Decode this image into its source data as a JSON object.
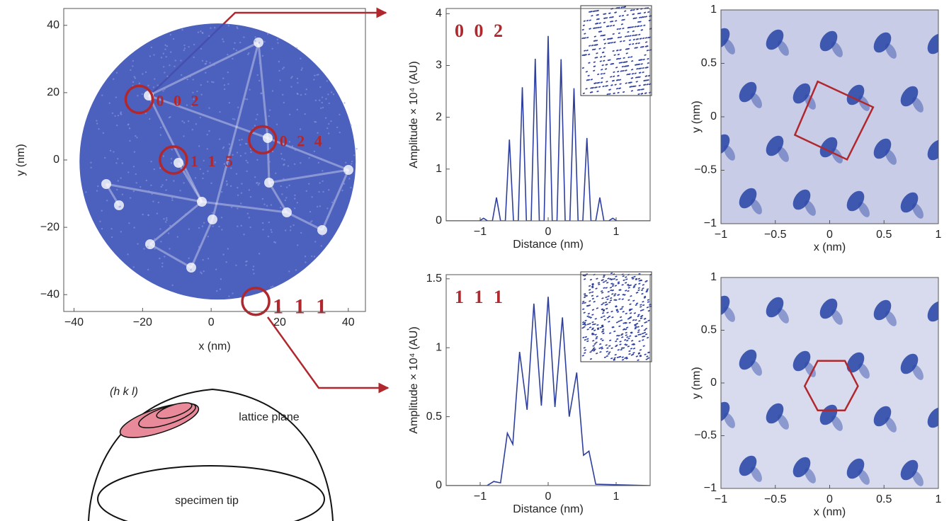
{
  "chart_data": [
    {
      "type": "heatmap",
      "xlabel": "x (nm)",
      "ylabel": "y (nm)",
      "color": "#3d52b8",
      "xlim": [
        -43,
        45
      ],
      "ylim": [
        -45,
        45
      ],
      "xticks": [
        {
          "value": -40,
          "label": "−40"
        },
        {
          "value": -20,
          "label": "−20"
        },
        0,
        20,
        40
      ],
      "yticks": [
        {
          "value": -40,
          "label": "−40"
        },
        {
          "value": -20,
          "label": "−20"
        },
        0,
        20,
        40
      ],
      "annotations": [
        {
          "label": "0 0 2",
          "x": -21,
          "y": 18
        },
        {
          "label": "0 2 4",
          "x": 15,
          "y": 6
        },
        {
          "label": "1 1 5",
          "x": -11,
          "y": 0
        },
        {
          "label": "1 1 1",
          "x": 13,
          "y": -42
        }
      ]
    },
    {
      "type": "line",
      "label": "0 0 2",
      "xlabel": "Distance (nm)",
      "ylabel": "Amplitude × 10⁴ (AU)",
      "color": "#2e3f9e",
      "xlim": [
        -1.5,
        1.5
      ],
      "ylim": [
        0,
        4.1
      ],
      "xticks": [
        {
          "value": -1,
          "label": "−1"
        },
        0,
        1
      ],
      "yticks": [
        0,
        1,
        2,
        3,
        4
      ],
      "x": [
        -1.5,
        -1.01,
        -0.95,
        -0.89,
        -0.82,
        -0.76,
        -0.7,
        -0.63,
        -0.57,
        -0.51,
        -0.44,
        -0.38,
        -0.32,
        -0.25,
        -0.19,
        -0.13,
        -0.06,
        0,
        0.06,
        0.13,
        0.19,
        0.25,
        0.32,
        0.38,
        0.44,
        0.51,
        0.57,
        0.63,
        0.7,
        0.76,
        0.82,
        0.89,
        0.95,
        1.01,
        1.5
      ],
      "values": [
        0,
        0,
        0.05,
        0,
        0,
        0.45,
        0,
        0,
        1.57,
        0,
        0,
        2.58,
        0,
        0,
        3.13,
        0,
        0,
        3.57,
        0,
        0,
        3.12,
        0,
        0,
        2.56,
        0,
        0,
        1.6,
        0,
        0,
        0.45,
        0,
        0,
        0.05,
        0,
        0
      ]
    },
    {
      "type": "line",
      "label": "1 1 1",
      "xlabel": "Distance (nm)",
      "ylabel": "Amplitude × 10⁴ (AU)",
      "color": "#2e3f9e",
      "xlim": [
        -1.5,
        1.5
      ],
      "ylim": [
        0,
        1.53
      ],
      "xticks": [
        {
          "value": -1,
          "label": "−1"
        },
        0,
        1
      ],
      "yticks": [
        0,
        0.5,
        1,
        1.5
      ],
      "x": [
        -1.5,
        -0.9,
        -0.8,
        -0.7,
        -0.6,
        -0.52,
        -0.42,
        -0.31,
        -0.21,
        -0.1,
        0,
        0.1,
        0.21,
        0.31,
        0.42,
        0.52,
        0.6,
        0.7,
        1.5
      ],
      "values": [
        0,
        0,
        0.03,
        0.02,
        0.38,
        0.3,
        0.97,
        0.55,
        1.32,
        0.58,
        1.37,
        0.57,
        1.22,
        0.5,
        0.82,
        0.22,
        0.25,
        0.01,
        0
      ]
    },
    {
      "type": "heatmap",
      "xlabel": "x (nm)",
      "ylabel": "y (nm)",
      "color": "#2f4aa8",
      "background": "#c9cce6",
      "xlim": [
        -1,
        1
      ],
      "ylim": [
        -1,
        1
      ],
      "xticks": [
        {
          "value": -1,
          "label": "−1"
        },
        {
          "value": -0.5,
          "label": "−0.5"
        },
        0,
        0.5,
        1
      ],
      "yticks": [
        {
          "value": -1,
          "label": "−1"
        },
        {
          "value": -0.5,
          "label": "−0.5"
        },
        0,
        0.5,
        1
      ],
      "overlay": {
        "color": "#b0282e",
        "x": [
          -0.11,
          0.4,
          0.16,
          -0.32
        ],
        "y": [
          0.33,
          0.09,
          -0.4,
          -0.17
        ]
      }
    },
    {
      "type": "heatmap",
      "xlabel": "x (nm)",
      "ylabel": "y (nm)",
      "color": "#2f4aa8",
      "background": "#d8dbee",
      "xlim": [
        -1,
        1
      ],
      "ylim": [
        -1,
        1
      ],
      "xticks": [
        {
          "value": -1,
          "label": "−1"
        },
        {
          "value": -0.5,
          "label": "−0.5"
        },
        0,
        0.5,
        1
      ],
      "yticks": [
        {
          "value": -1,
          "label": "−1"
        },
        {
          "value": -0.5,
          "label": "−0.5"
        },
        0,
        0.5,
        1
      ],
      "overlay": {
        "color": "#b0282e",
        "x": [
          -0.11,
          0.14,
          0.26,
          0.14,
          -0.11,
          -0.23
        ],
        "y": [
          0.21,
          0.21,
          -0.03,
          -0.26,
          -0.26,
          -0.03
        ]
      }
    }
  ],
  "diagram": {
    "plane_label": "(h k l)",
    "lattice_label": "lattice plane",
    "tip_label": "specimen tip"
  }
}
